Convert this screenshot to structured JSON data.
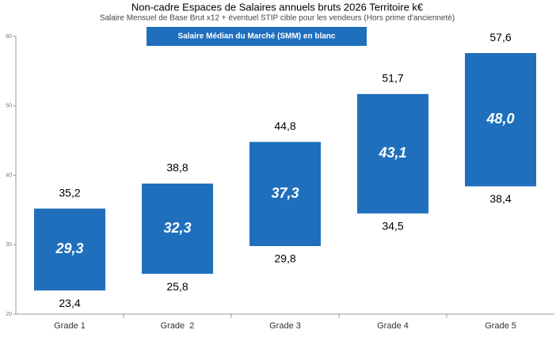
{
  "chart_data": {
    "type": "range_bar",
    "title": "Non-cadre Espaces de Salaires annuels bruts 2026 Territoire k€",
    "subtitle": "Salaire Mensuel de Base Brut x12 + éventuel STIP cible pour les vendeurs (Hors prime d'ancienneté)",
    "annotation": "Salaire Médian du Marché (SMM) en blanc",
    "categories": [
      "Grade 1",
      "Grade  2",
      "Grade 3",
      "Grade 4",
      "Grade 5"
    ],
    "lows": {
      "values": [
        23.4,
        25.8,
        29.8,
        34.5,
        38.4
      ],
      "value_labels": [
        "23,4",
        "25,8",
        "29,8",
        "34,5",
        "38,4"
      ]
    },
    "highs": {
      "values": [
        35.2,
        38.8,
        44.8,
        51.7,
        57.6
      ],
      "value_labels": [
        "35,2",
        "38,8",
        "44,8",
        "51,7",
        "57,6"
      ]
    },
    "medians": {
      "values": [
        29.3,
        32.3,
        37.3,
        43.1,
        48.0
      ],
      "value_labels": [
        "29,3",
        "32,3",
        "37,3",
        "43,1",
        "48,0"
      ]
    },
    "color": "#1f6fbd",
    "ylim": [
      20,
      60
    ],
    "yticks": [
      20,
      30,
      40,
      50,
      60
    ],
    "grid": false
  }
}
